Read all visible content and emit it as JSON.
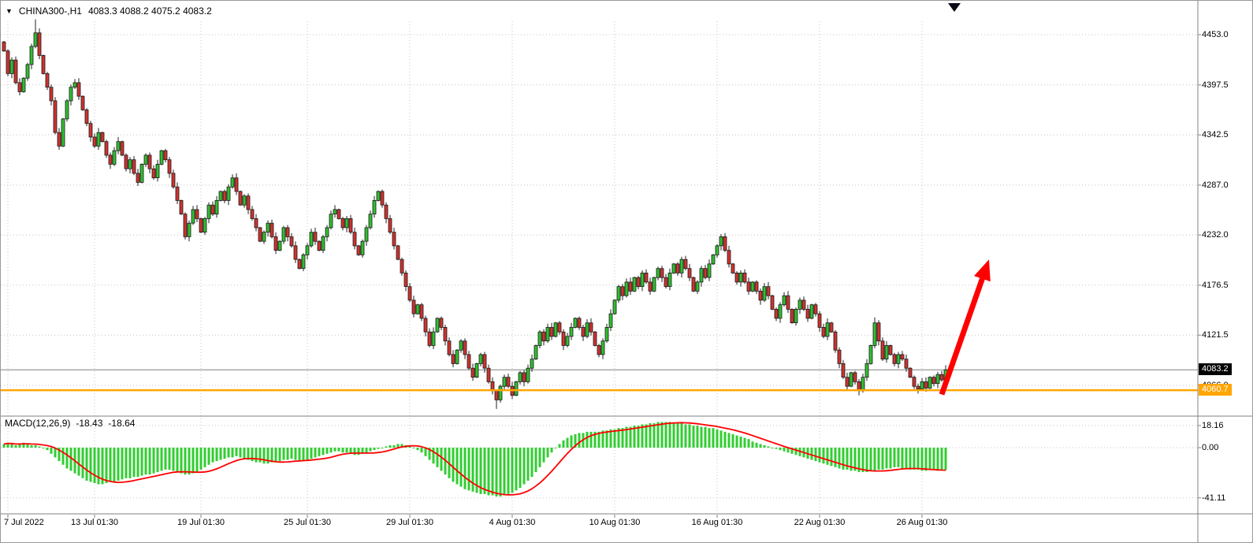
{
  "window": {
    "header": {
      "dropdown_icon": "▼",
      "title": "CHINA300-,H1",
      "ohlc_text": "4083.3 4088.2 4075.2 4083.2"
    }
  },
  "chart_data": [
    {
      "type": "candlestick",
      "symbol": "CHINA300-",
      "timeframe": "H1",
      "last_ohlc": {
        "open": 4083.3,
        "high": 4088.2,
        "low": 4075.2,
        "close": 4083.2
      },
      "ylim": [
        4035,
        4470
      ],
      "price_ticks": [
        "4453.0",
        "4397.5",
        "4342.5",
        "4287.0",
        "4232.0",
        "4176.5",
        "4121.5",
        "4066.0"
      ],
      "time_ticks": [
        {
          "index": 1,
          "label": "7 Jul 2022"
        },
        {
          "index": 23,
          "label": "13 Jul 01:30"
        },
        {
          "index": 50,
          "label": "19 Jul 01:30"
        },
        {
          "index": 77,
          "label": "25 Jul 01:30"
        },
        {
          "index": 103,
          "label": "29 Jul 01:30"
        },
        {
          "index": 129,
          "label": "4 Aug 01:30"
        },
        {
          "index": 155,
          "label": "10 Aug 01:30"
        },
        {
          "index": 181,
          "label": "16 Aug 01:30"
        },
        {
          "index": 207,
          "label": "22 Aug 01:30"
        },
        {
          "index": 233,
          "label": "26 Aug 01:30"
        }
      ],
      "closes": [
        4435,
        4410,
        4425,
        4400,
        4390,
        4405,
        4420,
        4440,
        4455,
        4430,
        4410,
        4395,
        4380,
        4345,
        4330,
        4360,
        4380,
        4395,
        4400,
        4385,
        4370,
        4355,
        4340,
        4330,
        4345,
        4335,
        4320,
        4310,
        4325,
        4335,
        4320,
        4305,
        4315,
        4300,
        4290,
        4310,
        4320,
        4305,
        4295,
        4310,
        4325,
        4315,
        4300,
        4285,
        4270,
        4255,
        4230,
        4245,
        4260,
        4250,
        4235,
        4250,
        4265,
        4255,
        4270,
        4280,
        4270,
        4285,
        4295,
        4280,
        4265,
        4275,
        4260,
        4250,
        4240,
        4225,
        4235,
        4245,
        4230,
        4215,
        4225,
        4240,
        4230,
        4220,
        4205,
        4195,
        4210,
        4220,
        4235,
        4225,
        4215,
        4230,
        4240,
        4255,
        4260,
        4250,
        4240,
        4250,
        4235,
        4220,
        4210,
        4225,
        4240,
        4255,
        4270,
        4280,
        4265,
        4250,
        4235,
        4220,
        4205,
        4190,
        4175,
        4160,
        4145,
        4155,
        4140,
        4125,
        4110,
        4125,
        4140,
        4130,
        4115,
        4100,
        4090,
        4105,
        4115,
        4100,
        4085,
        4075,
        4090,
        4100,
        4085,
        4070,
        4060,
        4050,
        4065,
        4075,
        4065,
        4055,
        4070,
        4080,
        4070,
        4085,
        4095,
        4110,
        4125,
        4115,
        4130,
        4120,
        4135,
        4125,
        4110,
        4120,
        4130,
        4140,
        4130,
        4120,
        4135,
        4125,
        4110,
        4100,
        4115,
        4130,
        4145,
        4160,
        4175,
        4165,
        4180,
        4170,
        4185,
        4175,
        4190,
        4180,
        4170,
        4185,
        4195,
        4185,
        4175,
        4190,
        4200,
        4190,
        4205,
        4195,
        4185,
        4170,
        4180,
        4195,
        4185,
        4200,
        4210,
        4220,
        4230,
        4215,
        4200,
        4190,
        4180,
        4190,
        4180,
        4170,
        4180,
        4170,
        4160,
        4175,
        4165,
        4150,
        4140,
        4155,
        4165,
        4150,
        4135,
        4150,
        4160,
        4150,
        4140,
        4155,
        4145,
        4130,
        4120,
        4135,
        4125,
        4105,
        4090,
        4075,
        4065,
        4080,
        4070,
        4060,
        4075,
        4090,
        4110,
        4135,
        4115,
        4095,
        4110,
        4100,
        4090,
        4100,
        4095,
        4085,
        4075,
        4065,
        4062,
        4070,
        4063,
        4075,
        4068,
        4078,
        4072,
        4083.2
      ],
      "wick_overrides": {
        "8": {
          "high": 4470
        },
        "125": {
          "low": 4040
        },
        "221": {
          "high": 4141
        }
      },
      "current_price": {
        "value": 4083.2,
        "label": "4083.2",
        "tag_bg": "#000000",
        "tag_fg": "#ffffff",
        "line_color": "#808080"
      },
      "orange_level": {
        "value": 4060.7,
        "label": "4060.7",
        "color": "#FFA500",
        "tag_fg": "#ffffff"
      },
      "up_color": "#30bf30",
      "down_color": "#cf3230",
      "annotation_arrow": {
        "color": "#ff0000",
        "from": {
          "index": 238,
          "price": 4056
        },
        "to": {
          "index": 250,
          "price": 4205
        }
      }
    },
    {
      "type": "bar",
      "name": "MACD",
      "title": "MACD(12,26,9)",
      "values_text": {
        "main": "-18.43",
        "signal": "-18.64"
      },
      "ticks": [
        {
          "value": 18.16,
          "label": "18.16"
        },
        {
          "value": 0,
          "label": "0.00"
        },
        {
          "value": -41.11,
          "label": "-41.11"
        }
      ],
      "ylim": [
        -44,
        22
      ],
      "histogram_color": "#32CD32",
      "signal_color": "#ff0000",
      "histogram": [
        3,
        4,
        3,
        2,
        3,
        4,
        3,
        2,
        2,
        1,
        0,
        -2,
        -5,
        -8,
        -11,
        -14,
        -17,
        -19,
        -21,
        -23,
        -25,
        -27,
        -28,
        -29,
        -30,
        -30,
        -29,
        -28,
        -28,
        -27,
        -26,
        -25,
        -25,
        -24,
        -24,
        -23,
        -22,
        -22,
        -21,
        -20,
        -19,
        -18,
        -18,
        -19,
        -20,
        -21,
        -22,
        -22,
        -21,
        -20,
        -18,
        -16,
        -14,
        -12,
        -11,
        -10,
        -9,
        -8,
        -8,
        -7,
        -8,
        -9,
        -10,
        -11,
        -12,
        -12,
        -13,
        -13,
        -12,
        -12,
        -11,
        -10,
        -10,
        -9,
        -10,
        -11,
        -11,
        -10,
        -9,
        -8,
        -7,
        -6,
        -5,
        -4,
        -3,
        -3,
        -4,
        -4,
        -5,
        -6,
        -6,
        -5,
        -4,
        -3,
        -2,
        -1,
        0,
        1,
        2,
        2,
        3,
        3,
        2,
        1,
        0,
        -2,
        -4,
        -7,
        -10,
        -13,
        -16,
        -19,
        -22,
        -25,
        -28,
        -30,
        -32,
        -34,
        -35,
        -36,
        -37,
        -38,
        -38,
        -39,
        -39,
        -40,
        -40,
        -39,
        -38,
        -37,
        -35,
        -33,
        -30,
        -27,
        -24,
        -20,
        -16,
        -12,
        -8,
        -4,
        0,
        3,
        6,
        8,
        10,
        11,
        12,
        12,
        13,
        13,
        13,
        13,
        14,
        14,
        15,
        15,
        16,
        16,
        17,
        17,
        18,
        18,
        19,
        19,
        20,
        20,
        21,
        21,
        21,
        21,
        20,
        20,
        20,
        19,
        19,
        18,
        18,
        17,
        17,
        16,
        16,
        15,
        14,
        13,
        12,
        11,
        10,
        9,
        8,
        7,
        5,
        4,
        3,
        2,
        1,
        0,
        -1,
        -2,
        -3,
        -4,
        -5,
        -6,
        -7,
        -8,
        -9,
        -10,
        -11,
        -12,
        -13,
        -14,
        -15,
        -16,
        -17,
        -18,
        -18,
        -19,
        -19,
        -20,
        -20,
        -20,
        -19,
        -19,
        -18,
        -18,
        -17,
        -17,
        -16,
        -16,
        -17,
        -17,
        -18,
        -18,
        -18,
        -19,
        -19,
        -18,
        -18,
        -19,
        -18.6,
        -18.4
      ]
    }
  ]
}
